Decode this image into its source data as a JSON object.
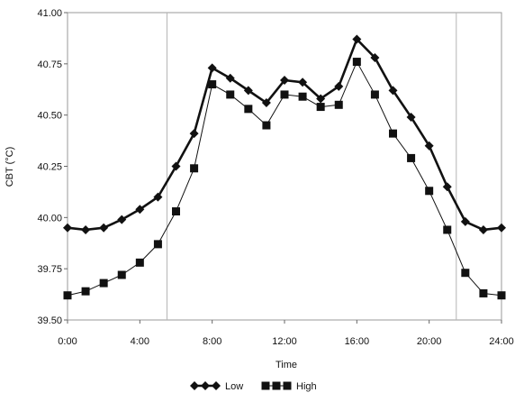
{
  "chart_data": {
    "type": "line",
    "xlabel": "Time",
    "ylabel": "CBT (°C)",
    "xlim": [
      0,
      24
    ],
    "ylim": [
      39.5,
      41.0
    ],
    "x_tick_labels": [
      "0:00",
      "4:00",
      "8:00",
      "12:00",
      "16:00",
      "20:00",
      "24:00"
    ],
    "x_tick_values": [
      0,
      4,
      8,
      12,
      16,
      20,
      24
    ],
    "y_tick_labels": [
      "39.50",
      "39.75",
      "40.00",
      "40.25",
      "40.50",
      "40.75",
      "41.00"
    ],
    "y_tick_values": [
      39.5,
      39.75,
      40.0,
      40.25,
      40.5,
      40.75,
      41.0
    ],
    "grid": false,
    "vertical_reference_lines": [
      5.5,
      21.5
    ],
    "legend_position": "bottom",
    "x": [
      0,
      1,
      2,
      3,
      4,
      5,
      6,
      7,
      8,
      9,
      10,
      11,
      12,
      13,
      14,
      15,
      16,
      17,
      18,
      19,
      20,
      21,
      22,
      23,
      24
    ],
    "series": [
      {
        "name": "Low",
        "marker": "diamond",
        "color": "#111111",
        "values": [
          39.95,
          39.94,
          39.95,
          39.99,
          40.04,
          40.1,
          40.25,
          40.41,
          40.73,
          40.68,
          40.62,
          40.56,
          40.67,
          40.66,
          40.58,
          40.64,
          40.87,
          40.78,
          40.62,
          40.49,
          40.35,
          40.15,
          39.98,
          39.94,
          39.95
        ]
      },
      {
        "name": "High",
        "marker": "square",
        "color": "#111111",
        "values": [
          39.62,
          39.64,
          39.68,
          39.72,
          39.78,
          39.87,
          40.03,
          40.24,
          40.65,
          40.6,
          40.53,
          40.45,
          40.6,
          40.59,
          40.54,
          40.55,
          40.76,
          40.6,
          40.41,
          40.29,
          40.13,
          39.94,
          39.73,
          39.63,
          39.62
        ]
      }
    ]
  }
}
